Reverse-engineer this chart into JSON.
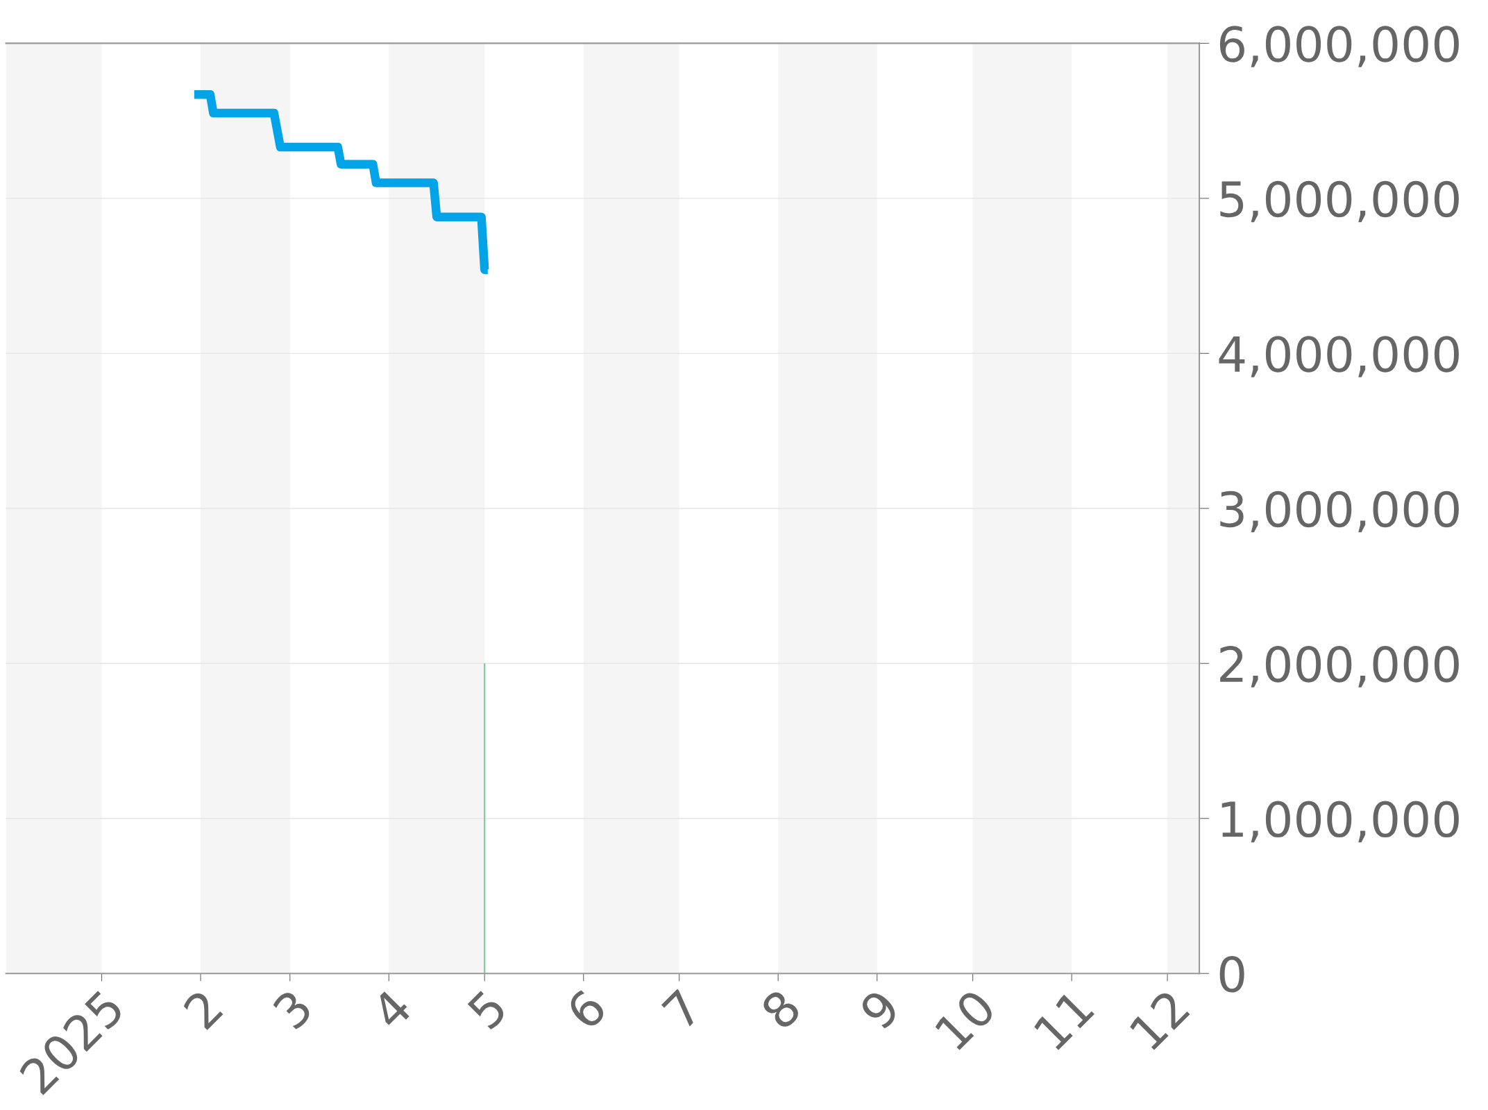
{
  "chart_data": {
    "type": "line",
    "xlim": [
      "2024-12-02",
      "2025-12-11"
    ],
    "ylim": [
      0,
      6000000
    ],
    "yticks": [
      {
        "value": 0,
        "label": "0"
      },
      {
        "value": 1000000,
        "label": "1,000,000"
      },
      {
        "value": 2000000,
        "label": "2,000,000"
      },
      {
        "value": 3000000,
        "label": "3,000,000"
      },
      {
        "value": 4000000,
        "label": "4,000,000"
      },
      {
        "value": 5000000,
        "label": "5,000,000"
      },
      {
        "value": 6000000,
        "label": "6,000,000"
      }
    ],
    "xticks": [
      {
        "value": "2025-01-01",
        "label": "2025"
      },
      {
        "value": "2025-02-01",
        "label": "2"
      },
      {
        "value": "2025-03-01",
        "label": "3"
      },
      {
        "value": "2025-04-01",
        "label": "4"
      },
      {
        "value": "2025-05-01",
        "label": "5"
      },
      {
        "value": "2025-06-01",
        "label": "6"
      },
      {
        "value": "2025-07-01",
        "label": "7"
      },
      {
        "value": "2025-08-01",
        "label": "8"
      },
      {
        "value": "2025-09-01",
        "label": "9"
      },
      {
        "value": "2025-10-01",
        "label": "10"
      },
      {
        "value": "2025-11-01",
        "label": "11"
      },
      {
        "value": "2025-12-01",
        "label": "12"
      }
    ],
    "grid": "y",
    "legend": false,
    "series": [
      {
        "color": "#03a3e8",
        "x": [
          "2025-01-30",
          "2025-02-04",
          "2025-02-05",
          "2025-02-24",
          "2025-02-26",
          "2025-03-16",
          "2025-03-17",
          "2025-03-27",
          "2025-03-28",
          "2025-04-15",
          "2025-04-16",
          "2025-04-30",
          "2025-05-01",
          "2025-05-02"
        ],
        "values": [
          5670000,
          5670000,
          5550000,
          5550000,
          5330000,
          5330000,
          5220000,
          5220000,
          5100000,
          5100000,
          4880000,
          4880000,
          4540000,
          4540000
        ]
      },
      {
        "type": "bar",
        "color": "#7fcf95",
        "x": [
          "2025-05-01"
        ],
        "values": [
          2000000
        ]
      }
    ],
    "bands": [
      {
        "axis": "x",
        "from": "2024-12-02",
        "to": "2025-01-01",
        "color": "#f5f5f5"
      },
      {
        "axis": "x",
        "from": "2025-02-01",
        "to": "2025-03-01",
        "color": "#f5f5f5"
      },
      {
        "axis": "x",
        "from": "2025-04-01",
        "to": "2025-05-01",
        "color": "#f5f5f5"
      },
      {
        "axis": "x",
        "from": "2025-06-01",
        "to": "2025-07-01",
        "color": "#f5f5f5"
      },
      {
        "axis": "x",
        "from": "2025-08-01",
        "to": "2025-09-01",
        "color": "#f5f5f5"
      },
      {
        "axis": "x",
        "from": "2025-10-01",
        "to": "2025-11-01",
        "color": "#f5f5f5"
      },
      {
        "axis": "x",
        "from": "2025-12-01",
        "to": "2025-12-11",
        "color": "#f5f5f5"
      }
    ]
  }
}
